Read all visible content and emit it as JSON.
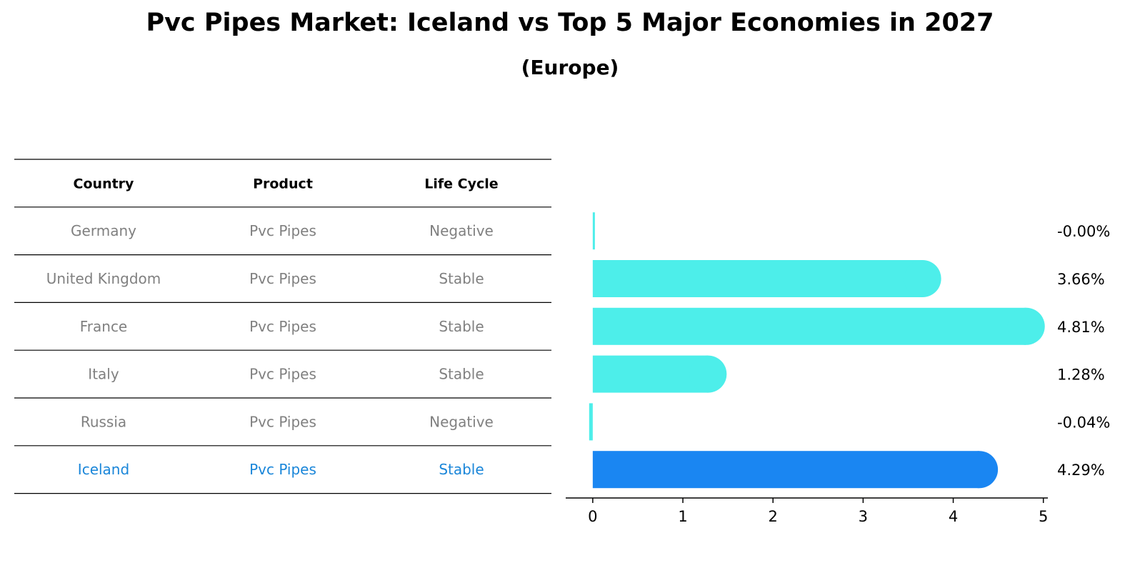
{
  "title": "Pvc Pipes Market: Iceland vs Top 5 Major Economies in 2027",
  "subtitle": "(Europe)",
  "table": {
    "headers": [
      "Country",
      "Product",
      "Life Cycle"
    ],
    "rows": [
      [
        "Germany",
        "Pvc Pipes",
        "Negative"
      ],
      [
        "United Kingdom",
        "Pvc Pipes",
        "Stable"
      ],
      [
        "France",
        "Pvc Pipes",
        "Stable"
      ],
      [
        "Italy",
        "Pvc Pipes",
        "Stable"
      ],
      [
        "Russia",
        "Pvc Pipes",
        "Negative"
      ],
      [
        "Iceland",
        "Pvc Pipes",
        "Stable"
      ]
    ],
    "highlight_row": 5
  },
  "colors": {
    "bar": "#4deeea",
    "highlight": "#1a86f2",
    "muted_text": "#808080",
    "highlight_text": "#1a86d9"
  },
  "chart_data": {
    "type": "bar",
    "orientation": "horizontal",
    "categories": [
      "Germany",
      "United Kingdom",
      "France",
      "Italy",
      "Russia",
      "Iceland"
    ],
    "values": [
      -0.0,
      3.66,
      4.81,
      1.28,
      -0.04,
      4.29
    ],
    "value_labels": [
      "-0.00%",
      "3.66%",
      "4.81%",
      "1.28%",
      "-0.04%",
      "4.29%"
    ],
    "xlim": [
      -0.3,
      5.05
    ],
    "xticks": [
      "0",
      "1",
      "2",
      "3",
      "4",
      "5"
    ],
    "highlight_category": "Iceland"
  }
}
